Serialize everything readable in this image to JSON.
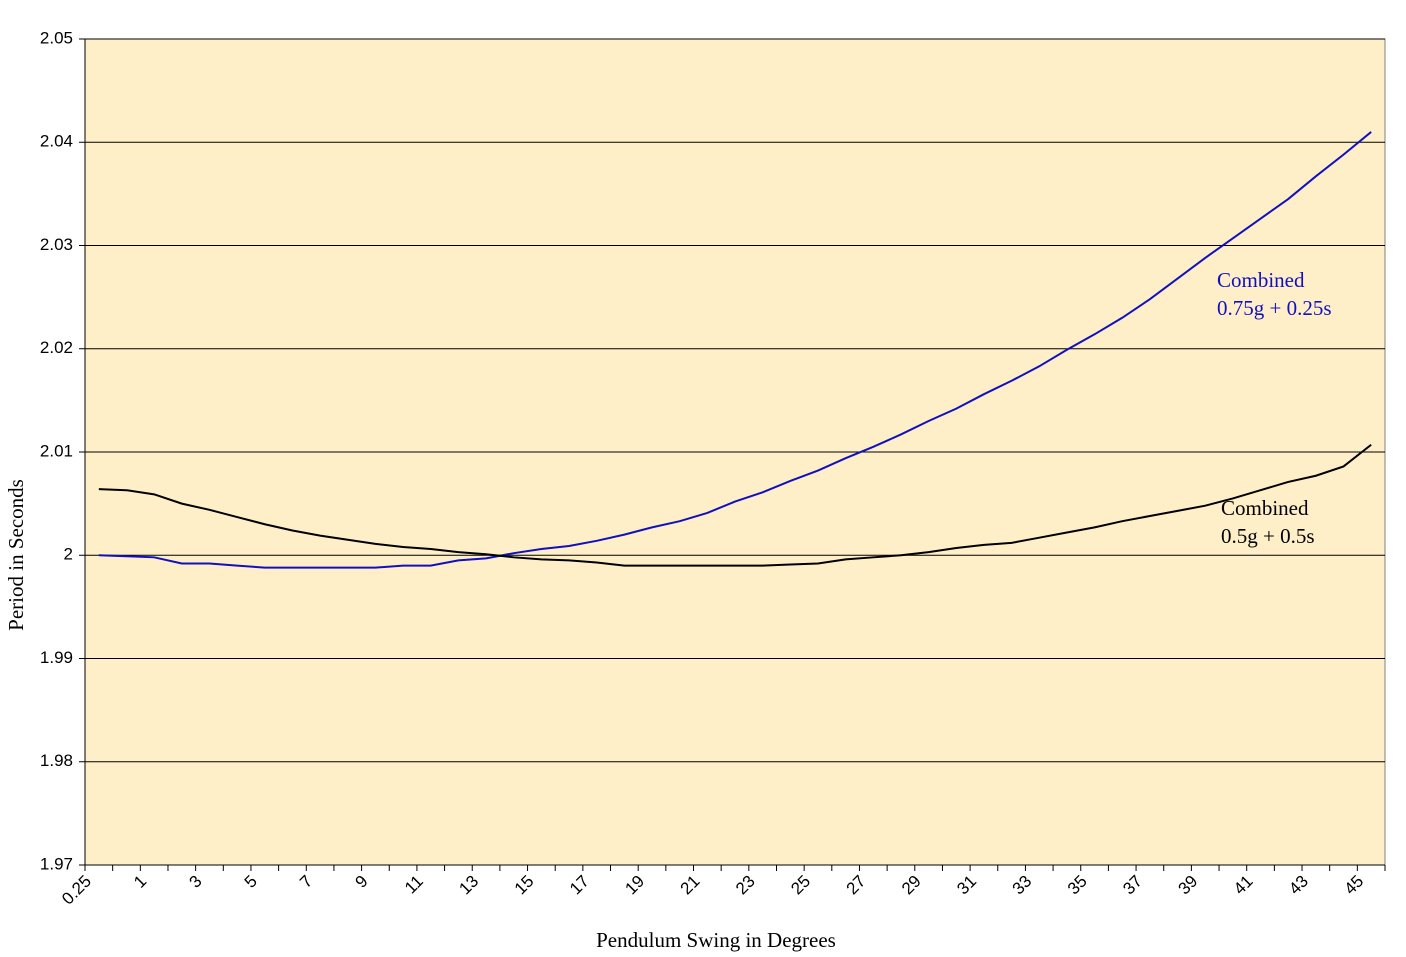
{
  "chart_data": {
    "type": "line",
    "x_label": "Pendulum Swing in Degrees",
    "y_label": "Period in Seconds",
    "categories": [
      "0.25",
      null,
      "1",
      null,
      "3",
      null,
      "5",
      null,
      "7",
      null,
      "9",
      null,
      "11",
      null,
      "13",
      null,
      "15",
      null,
      "17",
      null,
      "19",
      null,
      "21",
      null,
      "23",
      null,
      "25",
      null,
      "27",
      null,
      "29",
      null,
      "31",
      null,
      "33",
      null,
      "35",
      null,
      "37",
      null,
      "39",
      null,
      "41",
      null,
      "43",
      null,
      "45"
    ],
    "ylim": [
      1.97,
      2.05
    ],
    "yticks": [
      1.97,
      1.98,
      1.99,
      2,
      2.01,
      2.02,
      2.03,
      2.04,
      2.05
    ],
    "grid": true,
    "background": "#FFEFC8",
    "series": [
      {
        "label_lines": [
          "Combined",
          "0.75g + 0.25s"
        ],
        "color": "#1010C0",
        "values": [
          2.0,
          1.9999,
          1.9998,
          1.9992,
          1.9992,
          1.999,
          1.9988,
          1.9988,
          1.9988,
          1.9988,
          1.9988,
          1.999,
          1.999,
          1.9995,
          1.9997,
          2.0002,
          2.0006,
          2.0009,
          2.0014,
          2.002,
          2.0027,
          2.0033,
          2.0041,
          2.0052,
          2.0061,
          2.0072,
          2.0082,
          2.0094,
          2.0105,
          2.0117,
          2.013,
          2.0142,
          2.0156,
          2.0169,
          2.0183,
          2.0199,
          2.0214,
          2.023,
          2.0248,
          2.0268,
          2.0288,
          2.0307,
          2.0326,
          2.0345,
          2.0367,
          2.0388,
          2.041
        ]
      },
      {
        "label_lines": [
          "Combined",
          "0.5g + 0.5s"
        ],
        "color": "#000000",
        "values": [
          2.0064,
          2.0063,
          2.0059,
          2.005,
          2.0044,
          2.0037,
          2.003,
          2.0024,
          2.0019,
          2.0015,
          2.0011,
          2.0008,
          2.0006,
          2.0003,
          2.0001,
          1.9998,
          1.9996,
          1.9995,
          1.9993,
          1.999,
          1.999,
          1.999,
          1.999,
          1.999,
          1.999,
          1.9991,
          1.9992,
          1.9996,
          1.9998,
          2.0,
          2.0003,
          2.0007,
          2.001,
          2.0012,
          2.0017,
          2.0022,
          2.0027,
          2.0033,
          2.0038,
          2.0043,
          2.0048,
          2.0055,
          2.0063,
          2.0071,
          2.0077,
          2.0086,
          2.0107
        ]
      }
    ]
  }
}
